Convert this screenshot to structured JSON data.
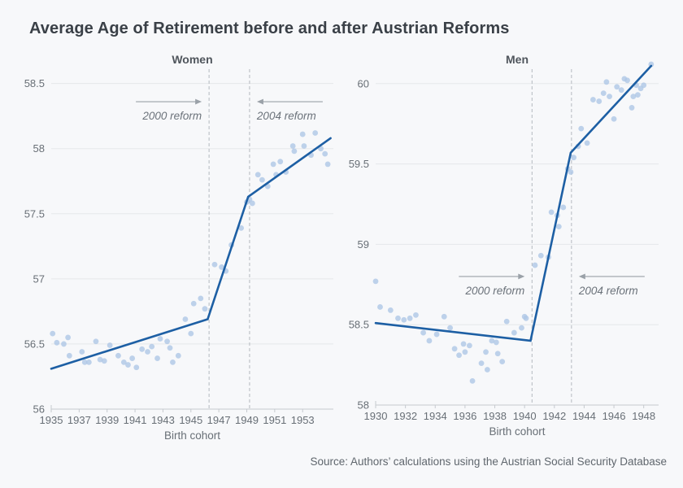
{
  "page": {
    "title": "Average Age of Retirement before and after Austrian Reforms",
    "source_note": "Source: Authors’ calculations using the Austrian Social Security Database"
  },
  "colors": {
    "background": "#f7f8fa",
    "title_text": "#3a4047",
    "panel_title_text": "#4f555c",
    "grid": "#e5e7ea",
    "axis_line": "#c6cacf",
    "tick_text": "#686f76",
    "dashed_line": "#b4b9bf",
    "arrow": "#9aa1a8",
    "annotation_text": "#6b727a",
    "scatter_fill": "#aec7e6",
    "trend_stroke": "#1d5fa4"
  },
  "chart_data": [
    {
      "type": "scatter",
      "title": "Women",
      "xlabel": "Birth cohort",
      "ylabel": "",
      "grid": "horizontal",
      "xlim": [
        1935,
        1955.2
      ],
      "ylim": [
        56,
        58.61
      ],
      "xticks": [
        1935,
        1937,
        1939,
        1941,
        1943,
        1945,
        1947,
        1949,
        1951,
        1953
      ],
      "yticks": [
        56,
        56.5,
        57,
        57.5,
        58,
        58.5
      ],
      "reform_lines": [
        {
          "x": 1946.3,
          "label": "2000 reform",
          "side": "left",
          "arrow_age": 58.36
        },
        {
          "x": 1949.2,
          "label": "2004 reform",
          "side": "right",
          "arrow_age": 58.36
        }
      ],
      "trend": [
        [
          1935,
          56.31
        ],
        [
          1946.2,
          56.69
        ],
        [
          1949.1,
          57.63
        ],
        [
          1955,
          58.08
        ]
      ],
      "scatter": {
        "x": [
          1935.1,
          1935.4,
          1935.9,
          1936.2,
          1936.3,
          1937.2,
          1937.4,
          1937.7,
          1938.2,
          1938.5,
          1938.8,
          1939.2,
          1939.8,
          1940.2,
          1940.5,
          1940.8,
          1941.1,
          1941.5,
          1941.9,
          1942.2,
          1942.6,
          1942.8,
          1943.3,
          1943.5,
          1943.7,
          1944.1,
          1944.6,
          1945.0,
          1945.2,
          1945.7,
          1946.0,
          1946.7,
          1947.2,
          1947.5,
          1947.9,
          1948.6,
          1949.0,
          1949.2,
          1949.4,
          1949.8,
          1950.1,
          1950.5,
          1950.9,
          1951.1,
          1951.4,
          1951.8,
          1952.3,
          1952.4,
          1953.0,
          1953.1,
          1953.6,
          1953.9,
          1954.3,
          1954.6,
          1954.8
        ],
        "y": [
          56.58,
          56.51,
          56.5,
          56.55,
          56.41,
          56.44,
          56.36,
          56.36,
          56.52,
          56.38,
          56.37,
          56.49,
          56.41,
          56.36,
          56.34,
          56.39,
          56.32,
          56.46,
          56.44,
          56.48,
          56.39,
          56.54,
          56.52,
          56.47,
          56.36,
          56.41,
          56.69,
          56.58,
          56.81,
          56.85,
          56.77,
          57.11,
          57.09,
          57.06,
          57.26,
          57.39,
          57.59,
          57.61,
          57.58,
          57.8,
          57.76,
          57.71,
          57.88,
          57.8,
          57.9,
          57.82,
          58.02,
          57.98,
          58.11,
          58.02,
          57.95,
          58.12,
          58.0,
          57.96,
          57.88
        ]
      }
    },
    {
      "type": "scatter",
      "title": "Men",
      "xlabel": "Birth cohort",
      "ylabel": "",
      "grid": "horizontal",
      "xlim": [
        1930,
        1949.0
      ],
      "ylim": [
        58,
        60.09
      ],
      "xticks": [
        1930,
        1932,
        1934,
        1936,
        1938,
        1940,
        1942,
        1944,
        1946,
        1948
      ],
      "yticks": [
        58,
        58.5,
        59,
        59.5,
        60
      ],
      "reform_lines": [
        {
          "x": 1940.5,
          "label": "2000 reform",
          "side": "left",
          "arrow_age": 58.8
        },
        {
          "x": 1943.15,
          "label": "2004 reform",
          "side": "right",
          "arrow_age": 58.8
        }
      ],
      "trend": [
        [
          1930,
          58.51
        ],
        [
          1940.4,
          58.4
        ],
        [
          1943.1,
          59.57
        ],
        [
          1948.5,
          60.11
        ]
      ],
      "scatter": {
        "x": [
          1930.0,
          1930.3,
          1931.0,
          1931.5,
          1931.9,
          1932.3,
          1932.7,
          1933.2,
          1933.6,
          1934.1,
          1934.6,
          1935.0,
          1935.3,
          1935.6,
          1935.9,
          1936.0,
          1936.3,
          1936.5,
          1937.1,
          1937.4,
          1937.5,
          1937.8,
          1938.1,
          1938.2,
          1938.5,
          1938.8,
          1939.3,
          1939.8,
          1940.0,
          1940.1,
          1940.7,
          1941.1,
          1941.6,
          1941.8,
          1942.2,
          1942.3,
          1942.6,
          1942.9,
          1943.1,
          1943.3,
          1943.6,
          1943.8,
          1944.2,
          1944.6,
          1945.0,
          1945.3,
          1945.5,
          1945.7,
          1946.0,
          1946.2,
          1946.5,
          1946.7,
          1946.9,
          1947.2,
          1947.3,
          1947.5,
          1947.6,
          1947.8,
          1948.0,
          1948.5
        ],
        "y": [
          58.77,
          58.61,
          58.59,
          58.54,
          58.53,
          58.54,
          58.56,
          58.45,
          58.4,
          58.44,
          58.55,
          58.48,
          58.35,
          58.31,
          58.38,
          58.33,
          58.37,
          58.15,
          58.26,
          58.33,
          58.22,
          58.4,
          58.39,
          58.32,
          58.27,
          58.52,
          58.45,
          58.48,
          58.55,
          58.54,
          58.87,
          58.93,
          58.92,
          59.2,
          59.18,
          59.11,
          59.23,
          59.47,
          59.45,
          59.54,
          59.61,
          59.72,
          59.63,
          59.9,
          59.89,
          59.94,
          60.01,
          59.92,
          59.78,
          59.98,
          59.96,
          60.03,
          60.02,
          59.85,
          59.92,
          59.99,
          59.93,
          59.97,
          59.99,
          60.12
        ]
      }
    }
  ]
}
